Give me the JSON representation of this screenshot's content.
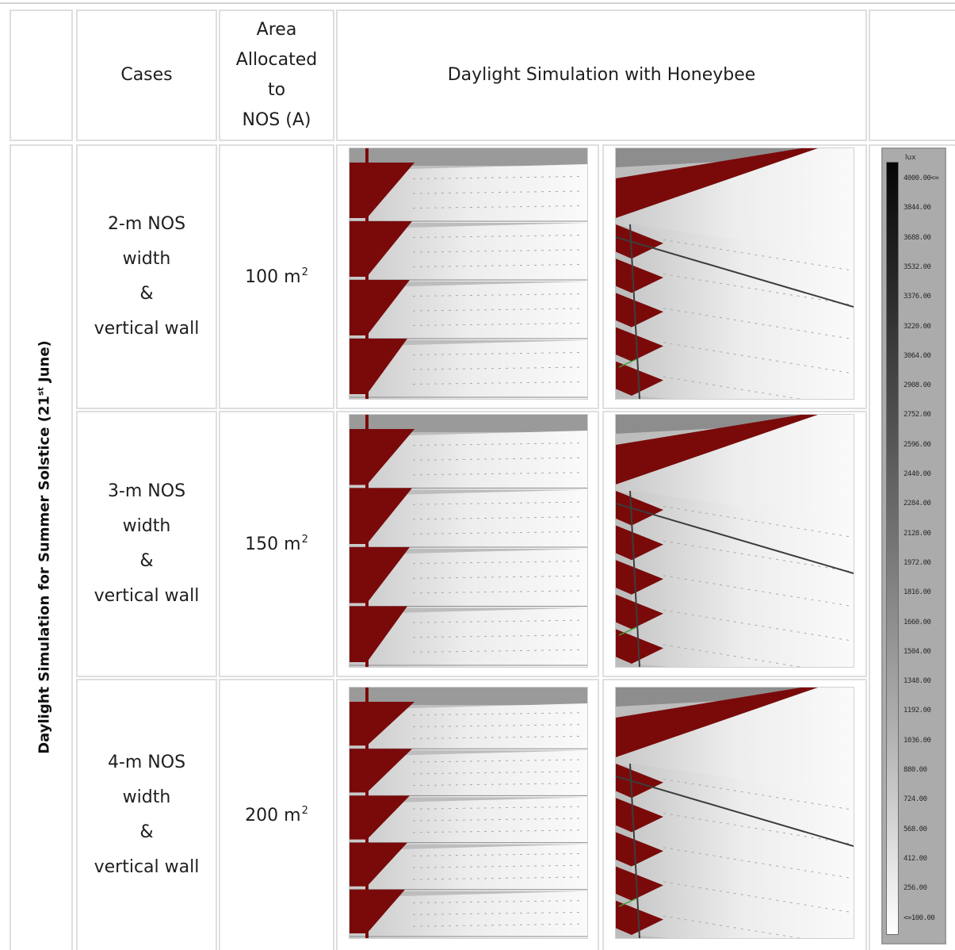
{
  "header": {
    "cases": "Cases",
    "area_line1": "Area",
    "area_line2": "Allocated",
    "area_line3": "to",
    "area_line4": "NOS (A)",
    "simulation": "Daylight Simulation with Honeybee"
  },
  "side_title": {
    "prefix": "Daylight Simulation for Summer Solstice (21",
    "sup": "st",
    "suffix": " June)"
  },
  "rows": [
    {
      "case_line1": "2-m  NOS",
      "case_line2": "width",
      "case_line3": "&",
      "case_line4": "vertical wall",
      "area": "100 m",
      "area_sup": "2"
    },
    {
      "case_line1": "3-m NOS",
      "case_line2": "width",
      "case_line3": "&",
      "case_line4": "vertical wall",
      "area": "150 m",
      "area_sup": "2"
    },
    {
      "case_line1": "4-m NOS",
      "case_line2": "width",
      "case_line3": "&",
      "case_line4": "vertical wall",
      "area": "200 m",
      "area_sup": "2"
    }
  ],
  "legend": {
    "unit": "lux",
    "labels": [
      "4000.00<=",
      "3844.00",
      "3688.00",
      "3532.00",
      "3376.00",
      "3220.00",
      "3064.00",
      "2908.00",
      "2752.00",
      "2596.00",
      "2440.00",
      "2284.00",
      "2128.00",
      "1972.00",
      "1816.00",
      "1660.00",
      "1504.00",
      "1348.00",
      "1192.00",
      "1036.00",
      "880.00",
      "724.00",
      "568.00",
      "412.00",
      "256.00",
      "<=100.00"
    ]
  },
  "colors": {
    "wall_red": "#7a0a0a",
    "shelf_white": "#f4f4f4",
    "border_grey": "#dedede"
  }
}
